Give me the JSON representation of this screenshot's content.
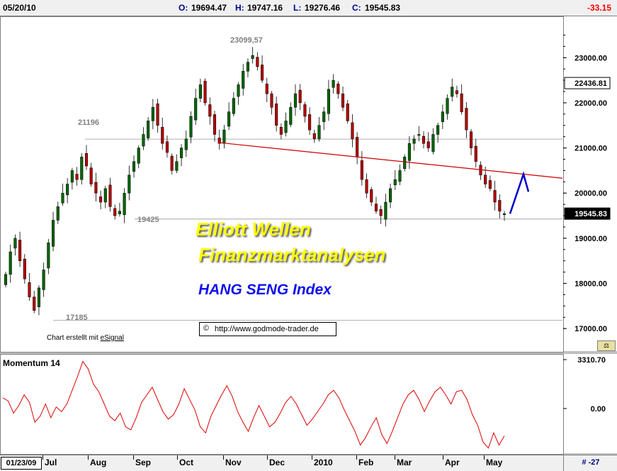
{
  "header": {
    "date": "05/20/10",
    "open_label": "O:",
    "open_value": "19694.47",
    "high_label": "H:",
    "high_value": "19747.16",
    "low_label": "L:",
    "low_value": "19276.46",
    "close_label": "C:",
    "close_value": "19545.83",
    "change": "-33.15"
  },
  "chart_data": [
    {
      "type": "candlestick",
      "title": "HANG SENG Index",
      "ylim": [
        16500,
        23900
      ],
      "y_ticks": [
        "23000.00",
        "22000.00",
        "21000.00",
        "20000.00",
        "19000.00",
        "18000.00",
        "17000.00"
      ],
      "y_tick_values": [
        23000,
        22000,
        21000,
        20000,
        19000,
        18000,
        17000
      ],
      "reference_levels": [
        {
          "label": "22436.81",
          "value": 22436.81
        },
        {
          "label": "19545.83",
          "value": 19545.83,
          "highlight": true
        }
      ],
      "horizontal_lines": [
        21196,
        19425,
        17185
      ],
      "annotations": [
        {
          "text": "23099,57",
          "value": 23099.57
        },
        {
          "text": "21196",
          "value": 21196
        },
        {
          "text": "19425",
          "value": 19425
        },
        {
          "text": "17185",
          "value": 17185
        }
      ],
      "trendline": {
        "from": [
          "Nov",
          21120
        ],
        "to": [
          "May",
          20350
        ]
      },
      "projection": [
        [
          19545,
          0
        ],
        [
          20420,
          1
        ],
        [
          20030,
          2
        ]
      ],
      "x_months": [
        "Jul",
        "Aug",
        "Sep",
        "Oct",
        "Nov",
        "Dec",
        "2010",
        "Feb",
        "Mar",
        "Apr",
        "May"
      ],
      "series_close": [
        18200,
        18700,
        19000,
        18500,
        18100,
        17700,
        17400,
        17900,
        18300,
        18900,
        19400,
        19700,
        20000,
        20200,
        20500,
        20300,
        20800,
        20600,
        20200,
        20000,
        19800,
        20100,
        19700,
        19500,
        19600,
        20000,
        20400,
        20700,
        21000,
        21300,
        21600,
        21900,
        21500,
        21100,
        20900,
        20500,
        20700,
        21000,
        21200,
        21700,
        22100,
        22400,
        22000,
        21700,
        21300,
        21100,
        21400,
        21800,
        22100,
        22400,
        22700,
        22900,
        23050,
        22800,
        22500,
        22200,
        21900,
        21500,
        21300,
        21600,
        21900,
        22200,
        22000,
        21700,
        21400,
        21200,
        21500,
        21800,
        22300,
        22500,
        22200,
        21900,
        21600,
        21200,
        20800,
        20300,
        20000,
        19800,
        19600,
        19500,
        19800,
        20100,
        20300,
        20500,
        20800,
        21100,
        21200,
        21300,
        21100,
        21000,
        21300,
        21500,
        21800,
        22100,
        22350,
        22200,
        21800,
        21400,
        21000,
        20700,
        20400,
        20200,
        20100,
        19800,
        19600,
        19545
      ],
      "date_start": "01/23/09"
    },
    {
      "type": "line",
      "title": "Momentum 14",
      "y_ticks": [
        "3310.70",
        "0.00"
      ],
      "series": [
        {
          "name": "Momentum 14",
          "values": [
            700,
            500,
            -300,
            200,
            900,
            400,
            -900,
            -500,
            300,
            -600,
            100,
            -200,
            300,
            1200,
            2100,
            3100,
            2600,
            1600,
            1100,
            300,
            -500,
            -800,
            -300,
            -1200,
            -1400,
            -600,
            400,
            900,
            1400,
            600,
            -200,
            -700,
            -400,
            300,
            1300,
            600,
            -100,
            -1200,
            -1600,
            -500,
            200,
            900,
            1500,
            800,
            -200,
            -900,
            -1500,
            -600,
            200,
            -500,
            -1200,
            -900,
            -300,
            400,
            800,
            300,
            -400,
            -1100,
            -700,
            -200,
            300,
            900,
            1200,
            700,
            -100,
            -800,
            -1500,
            -2400,
            -1900,
            -1200,
            -600,
            -1700,
            -2300,
            -1500,
            -600,
            300,
            900,
            1200,
            600,
            -200,
            500,
            1100,
            1400,
            900,
            300,
            1100,
            1200,
            600,
            -400,
            -1100,
            -2200,
            -2600,
            -1600,
            -2400,
            -1800
          ]
        }
      ]
    }
  ],
  "overlay": {
    "line1": "Elliott Wellen",
    "line2": "Finanzmarktanalysen",
    "line3": "HANG SENG Index"
  },
  "credit": {
    "prefix": "Chart erstellt mit ",
    "link": "eSignal"
  },
  "url_badge": {
    "symbol": "©",
    "text": "http://www.godmode-trader.de"
  },
  "bottom": {
    "start_date": "01/23/09",
    "months": [
      "Jul",
      "Aug",
      "Sep",
      "Oct",
      "Nov",
      "Dec",
      "2010",
      "Feb",
      "Mar",
      "Apr",
      "May"
    ],
    "bar_count": "# -27"
  },
  "colors": {
    "up": "#006400",
    "down": "#b40000",
    "trend": "#cc0000",
    "projection": "#0000cc",
    "momentum": "#dd0000",
    "overlay_text": "#ffff00",
    "title_blue": "#1010ee"
  }
}
